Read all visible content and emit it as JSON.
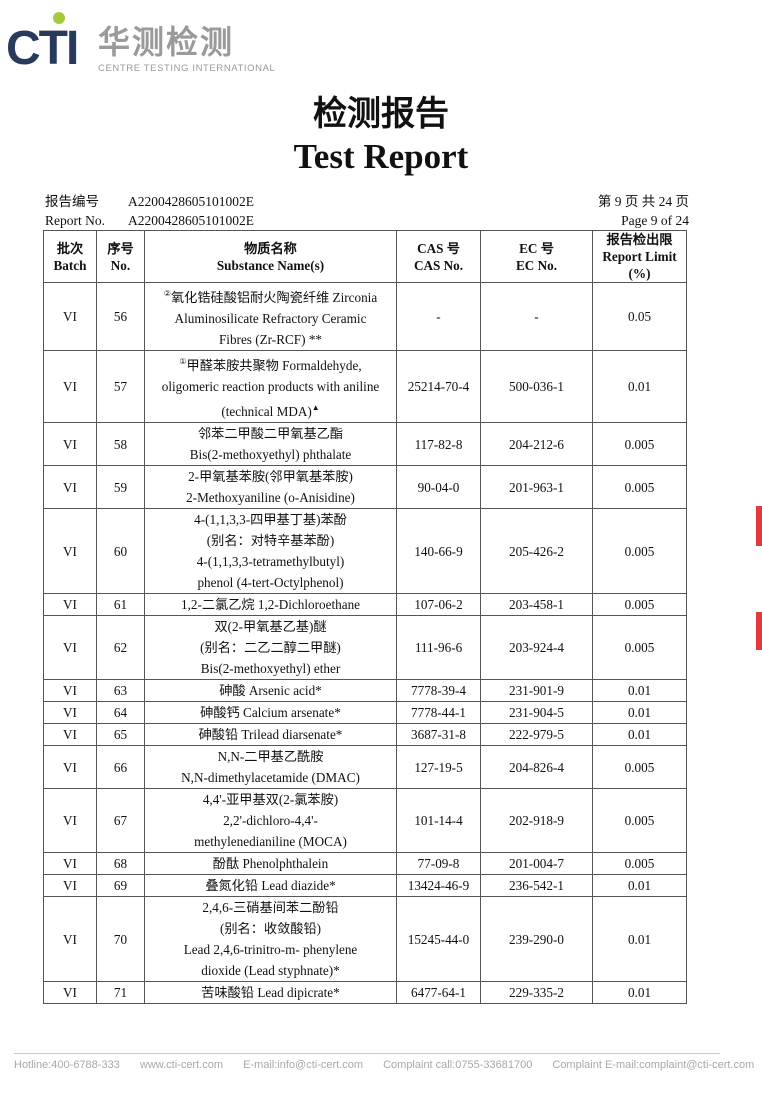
{
  "logo": {
    "brand": "CTI",
    "cn": "华测检测",
    "en": "CENTRE TESTING INTERNATIONAL"
  },
  "title": {
    "cn": "检测报告",
    "en": "Test Report"
  },
  "meta": {
    "report_no_label_cn": "报告编号",
    "report_no_label_en": "Report No.",
    "report_no": "A2200428605101002E",
    "page_cn": "第 9 页  共 24 页",
    "page_en": "Page 9 of 24"
  },
  "table": {
    "headers": [
      {
        "cn": "批次",
        "en": "Batch"
      },
      {
        "cn": "序号",
        "en": "No."
      },
      {
        "cn": "物质名称",
        "en": "Substance Name(s)"
      },
      {
        "cn": "CAS 号",
        "en": "CAS No."
      },
      {
        "cn": "EC 号",
        "en": "EC No."
      },
      {
        "cn": "报告检出限",
        "en": "Report Limit (%)"
      }
    ],
    "rows": [
      {
        "batch": "VI",
        "no": "56",
        "pre": "②",
        "name": [
          "氧化锆硅酸铝耐火陶瓷纤维 Zirconia",
          "Aluminosilicate Refractory Ceramic",
          "Fibres (Zr-RCF) **"
        ],
        "cas": "-",
        "ec": "-",
        "limit": "0.05"
      },
      {
        "batch": "VI",
        "no": "57",
        "pre": "①",
        "post": "▲",
        "name": [
          "甲醛苯胺共聚物 Formaldehyde,",
          "oligomeric reaction products with aniline",
          "(technical MDA)"
        ],
        "cas": "25214-70-4",
        "ec": "500-036-1",
        "limit": "0.01"
      },
      {
        "batch": "VI",
        "no": "58",
        "name": [
          "邻苯二甲酸二甲氧基乙酯",
          "Bis(2-methoxyethyl) phthalate"
        ],
        "cas": "117-82-8",
        "ec": "204-212-6",
        "limit": "0.005"
      },
      {
        "batch": "VI",
        "no": "59",
        "name": [
          "2-甲氧基苯胺(邻甲氧基苯胺)",
          "2-Methoxyaniline (o-Anisidine)"
        ],
        "cas": "90-04-0",
        "ec": "201-963-1",
        "limit": "0.005"
      },
      {
        "batch": "VI",
        "no": "60",
        "name": [
          "4-(1,1,3,3-四甲基丁基)苯酚",
          "(别名：对特辛基苯酚)",
          "4-(1,1,3,3-tetramethylbutyl)",
          "phenol (4-tert-Octylphenol)"
        ],
        "cas": "140-66-9",
        "ec": "205-426-2",
        "limit": "0.005"
      },
      {
        "batch": "VI",
        "no": "61",
        "name": [
          "1,2-二氯乙烷 1,2-Dichloroethane"
        ],
        "cas": "107-06-2",
        "ec": "203-458-1",
        "limit": "0.005"
      },
      {
        "batch": "VI",
        "no": "62",
        "name": [
          "双(2-甲氧基乙基)醚",
          "(别名：二乙二醇二甲醚)",
          "Bis(2-methoxyethyl) ether"
        ],
        "cas": "111-96-6",
        "ec": "203-924-4",
        "limit": "0.005"
      },
      {
        "batch": "VI",
        "no": "63",
        "name": [
          "砷酸 Arsenic acid*"
        ],
        "cas": "7778-39-4",
        "ec": "231-901-9",
        "limit": "0.01"
      },
      {
        "batch": "VI",
        "no": "64",
        "name": [
          "砷酸钙 Calcium arsenate*"
        ],
        "cas": "7778-44-1",
        "ec": "231-904-5",
        "limit": "0.01"
      },
      {
        "batch": "VI",
        "no": "65",
        "name": [
          "砷酸铅 Trilead diarsenate*"
        ],
        "cas": "3687-31-8",
        "ec": "222-979-5",
        "limit": "0.01"
      },
      {
        "batch": "VI",
        "no": "66",
        "name": [
          "N,N-二甲基乙酰胺",
          "N,N-dimethylacetamide (DMAC)"
        ],
        "cas": "127-19-5",
        "ec": "204-826-4",
        "limit": "0.005"
      },
      {
        "batch": "VI",
        "no": "67",
        "name": [
          "4,4'-亚甲基双(2-氯苯胺)",
          "2,2'-dichloro-4,4'-",
          "methylenedianiline (MOCA)"
        ],
        "cas": "101-14-4",
        "ec": "202-918-9",
        "limit": "0.005"
      },
      {
        "batch": "VI",
        "no": "68",
        "name": [
          "酚酞 Phenolphthalein"
        ],
        "cas": "77-09-8",
        "ec": "201-004-7",
        "limit": "0.005"
      },
      {
        "batch": "VI",
        "no": "69",
        "name": [
          "叠氮化铅 Lead diazide*"
        ],
        "cas": "13424-46-9",
        "ec": "236-542-1",
        "limit": "0.01"
      },
      {
        "batch": "VI",
        "no": "70",
        "name": [
          "2,4,6-三硝基间苯二酚铅",
          "(别名：收敛酸铅)",
          "Lead 2,4,6-trinitro-m-   phenylene",
          "dioxide (Lead styphnate)*"
        ],
        "cas": "15245-44-0",
        "ec": "239-290-0",
        "limit": "0.01"
      },
      {
        "batch": "VI",
        "no": "71",
        "name": [
          "苦味酸铅 Lead dipicrate*"
        ],
        "cas": "6477-64-1",
        "ec": "229-335-2",
        "limit": "0.01"
      }
    ]
  },
  "footer": {
    "hotline": "Hotline:400-6788-333",
    "website": "www.cti-cert.com",
    "email": "E-mail:info@cti-cert.com",
    "complaint_call": "Complaint call:0755-33681700",
    "complaint_email": "Complaint E-mail:complaint@cti-cert.com"
  },
  "colors": {
    "logo_text": "#2a3a5c",
    "logo_dot": "#a6c93a",
    "stamp": "#e23a3a"
  }
}
